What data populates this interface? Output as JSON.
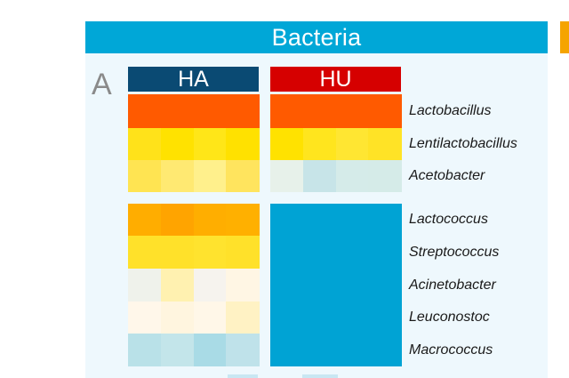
{
  "banner": {
    "title": "Bacteria"
  },
  "panel": {
    "letter": "A"
  },
  "colors": {
    "banner": "#00a7d7",
    "HA": "#0a4a73",
    "HU": "#d60000",
    "accent_strip": "#f5a400"
  },
  "groups": [
    {
      "name": "HA"
    },
    {
      "name": "HU"
    }
  ],
  "rows": [
    {
      "label": "Lactobacillus",
      "block": 0,
      "HA": [
        "#ff5a00",
        "#ff5a00",
        "#ff5a00",
        "#ff5a00"
      ],
      "HU": [
        "#ff5a00",
        "#ff5a00",
        "#ff5a00",
        "#ff5a00"
      ]
    },
    {
      "label": "Lentilactobacillus",
      "block": 0,
      "HA": [
        "#ffe21a",
        "#ffe200",
        "#ffe618",
        "#ffe100"
      ],
      "HU": [
        "#ffe200",
        "#ffe51e",
        "#ffe632",
        "#ffe326"
      ]
    },
    {
      "label": "Acetobacter",
      "block": 0,
      "HA": [
        "#ffe452",
        "#ffe972",
        "#fff08c",
        "#ffe45e"
      ],
      "HU": [
        "#e7f1ea",
        "#c7e4e8",
        "#d5ebe9",
        "#d5ebe8"
      ]
    },
    {
      "label": "Lactococcus",
      "block": 1,
      "HA": [
        "#ffad00",
        "#ffa400",
        "#ffae00",
        "#ffb000"
      ],
      "HU": [
        "#00a3d4",
        "#00a3d4",
        "#00a3d4",
        "#00a3d4"
      ]
    },
    {
      "label": "Streptococcus",
      "block": 1,
      "HA": [
        "#ffe12a",
        "#ffe12a",
        "#ffe32e",
        "#ffe12a"
      ],
      "HU": [
        "#00a3d4",
        "#00a3d4",
        "#00a3d4",
        "#00a3d4"
      ]
    },
    {
      "label": "Acinetobacter",
      "block": 1,
      "HA": [
        "#eff2eb",
        "#fff1b0",
        "#f6f3ee",
        "#fff6e4"
      ],
      "HU": [
        "#00a3d4",
        "#00a3d4",
        "#00a3d4",
        "#00a3d4"
      ]
    },
    {
      "label": "Leuconostoc",
      "block": 1,
      "HA": [
        "#fff7ea",
        "#fff5df",
        "#fff7e8",
        "#fff2c4"
      ],
      "HU": [
        "#00a3d4",
        "#00a3d4",
        "#00a3d4",
        "#00a3d4"
      ]
    },
    {
      "label": "Macrococcus",
      "block": 1,
      "HA": [
        "#b9e1e8",
        "#c3e5ea",
        "#a9dbe6",
        "#bfe2ea"
      ],
      "HU": [
        "#00a3d4",
        "#00a3d4",
        "#00a3d4",
        "#00a3d4"
      ]
    }
  ]
}
